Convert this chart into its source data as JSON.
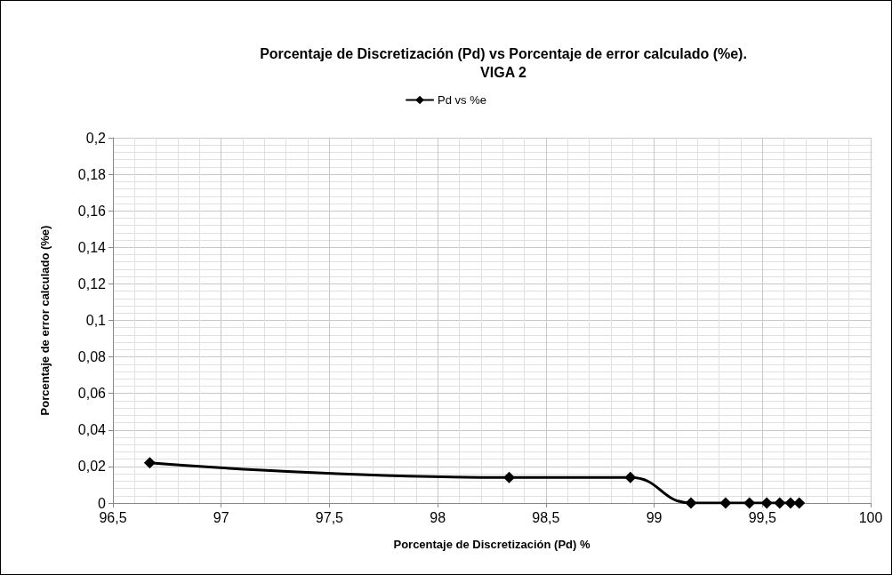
{
  "chart_data": {
    "type": "line",
    "title": "Porcentaje de Discretización (Pd) vs Porcentaje de error calculado (%e).\nVIGA 2",
    "xlabel": "Porcentaje de Discretización (Pd) %",
    "ylabel": "Porcentaje de error calculado (%e)",
    "x": [
      96.67,
      98.33,
      98.89,
      99.17,
      99.33,
      99.44,
      99.52,
      99.58,
      99.63,
      99.67
    ],
    "series": [
      {
        "name": "Pd vs %e",
        "color": "#000000",
        "values": [
          0.022,
          0.014,
          0.014,
          0,
          0,
          0,
          0,
          0,
          0,
          0
        ]
      }
    ],
    "xlim": [
      96.5,
      100
    ],
    "xticks": [
      {
        "value": 96.5,
        "label": "96,5"
      },
      97,
      {
        "value": 97.5,
        "label": "97,5"
      },
      98,
      {
        "value": 98.5,
        "label": "98,5"
      },
      99,
      {
        "value": 99.5,
        "label": "99,5"
      },
      100
    ],
    "ylim": [
      0,
      0.2
    ],
    "yticks": [
      0,
      {
        "value": 0.02,
        "label": "0,02"
      },
      {
        "value": 0.04,
        "label": "0,04"
      },
      {
        "value": 0.06,
        "label": "0,06"
      },
      {
        "value": 0.08,
        "label": "0,08"
      },
      {
        "value": 0.1,
        "label": "0,1"
      },
      {
        "value": 0.12,
        "label": "0,12"
      },
      {
        "value": 0.14,
        "label": "0,14"
      },
      {
        "value": 0.16,
        "label": "0,16"
      },
      {
        "value": 0.18,
        "label": "0,18"
      },
      {
        "value": 0.2,
        "label": "0,2"
      }
    ],
    "grid": true,
    "legend": "top",
    "marker": "diamond",
    "line_style": "solid"
  }
}
